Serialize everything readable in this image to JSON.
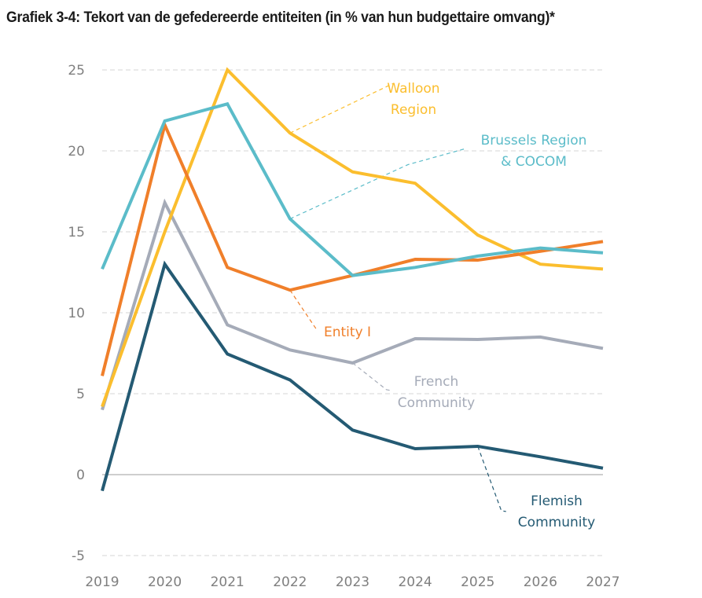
{
  "title": "Grafiek 3-4: Tekort van de gefedereerde entiteiten (in % van hun budgettaire omvang)*",
  "chart_data": {
    "type": "line",
    "title": "Grafiek 3-4: Tekort van de gefedereerde entiteiten (in % van hun budgettaire omvang)*",
    "xlabel": "",
    "ylabel": "",
    "x": [
      "2019",
      "2020",
      "2021",
      "2022",
      "2023",
      "2024",
      "2025",
      "2026",
      "2027"
    ],
    "ylim": [
      -5,
      25
    ],
    "yticks": [
      -5,
      0,
      5,
      10,
      15,
      20,
      25
    ],
    "grid": "horizontal-dashed",
    "legend": "inline-annotations",
    "series": [
      {
        "name": "Walloon Region",
        "label_lines": [
          "Walloon",
          "Region"
        ],
        "color": "#FBBE2E",
        "values": [
          4.2,
          15.0,
          25.0,
          21.1,
          18.7,
          18.0,
          14.8,
          13.0,
          12.7
        ],
        "callout_at": "2022"
      },
      {
        "name": "Brussels Region & COCOM",
        "label_lines": [
          "Brussels Region",
          "& COCOM"
        ],
        "color": "#5BBCC9",
        "values": [
          12.7,
          21.85,
          22.9,
          15.8,
          12.3,
          12.8,
          13.5,
          14.0,
          13.7
        ],
        "callout_at": "2022"
      },
      {
        "name": "Entity I",
        "label_lines": [
          "Entity I"
        ],
        "color": "#F07F2A",
        "values": [
          6.1,
          21.6,
          12.8,
          11.4,
          12.3,
          13.3,
          13.25,
          13.8,
          14.4
        ],
        "callout_at": "2022"
      },
      {
        "name": "French Community",
        "label_lines": [
          "French",
          "Community"
        ],
        "color": "#A5ABB8",
        "values": [
          4.0,
          16.8,
          9.25,
          7.7,
          6.9,
          8.4,
          8.35,
          8.5,
          7.8
        ],
        "callout_at": "2023"
      },
      {
        "name": "Flemish Community",
        "label_lines": [
          "Flemish",
          "Community"
        ],
        "color": "#245A73",
        "values": [
          -1.0,
          13.0,
          7.45,
          5.85,
          2.75,
          1.6,
          1.75,
          1.1,
          0.4
        ],
        "callout_at": "2025"
      }
    ]
  }
}
